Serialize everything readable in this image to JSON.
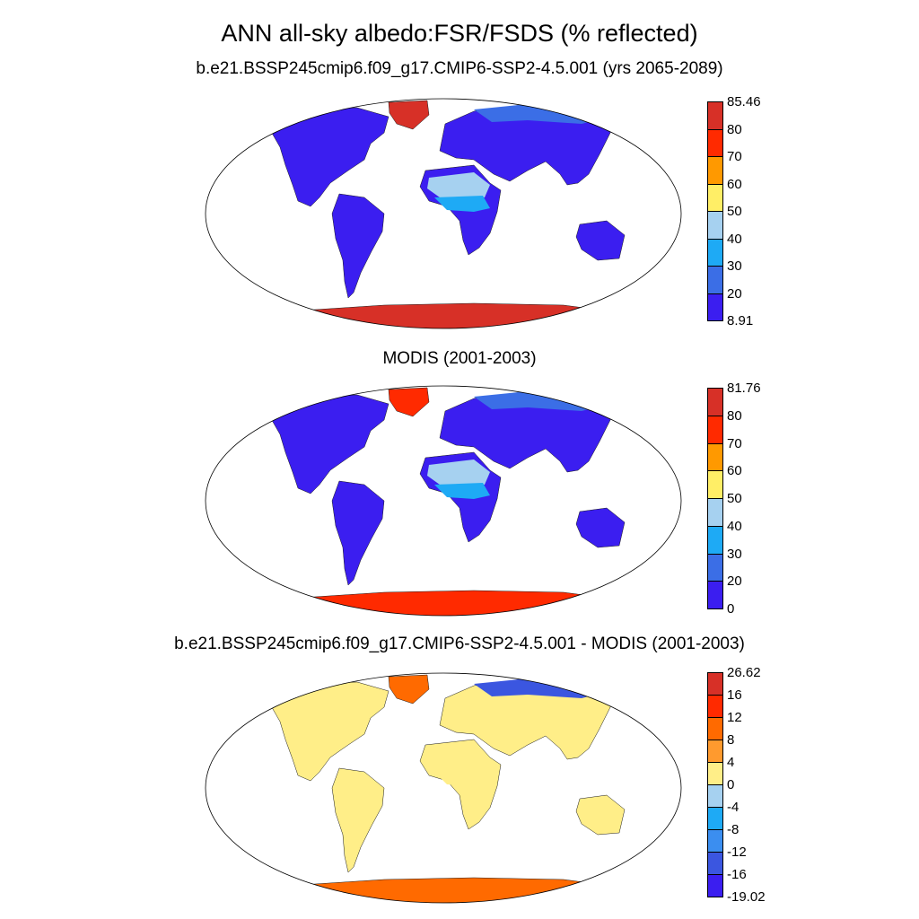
{
  "header": {
    "title": "ANN all-sky albedo:FSR/FSDS (% reflected)"
  },
  "panels": [
    {
      "subtitle": "b.e21.BSSP245cmip6.f09_g17.CMIP6-SSP2-4.5.001 (yrs 2065-2089)",
      "colorbar": {
        "labels": [
          "85.46",
          "80",
          "70",
          "60",
          "50",
          "40",
          "30",
          "20",
          "8.91"
        ],
        "colors": [
          "#d73027",
          "#ff2a00",
          "#ff9900",
          "#ffee66",
          "#a6d1f0",
          "#1eaaf5",
          "#3b6ee6",
          "#3b1ef0"
        ]
      },
      "region_fill": {
        "antarctica": "#d73027",
        "greenland": "#d73027",
        "land": "#3b1ef0",
        "desert": "#a6d1f0",
        "sahel": "#1eaaf5",
        "arctic": "#3b6ee6"
      }
    },
    {
      "subtitle": "MODIS (2001-2003)",
      "colorbar": {
        "labels": [
          "81.76",
          "80",
          "70",
          "60",
          "50",
          "40",
          "30",
          "20",
          "0"
        ],
        "colors": [
          "#d73027",
          "#ff2a00",
          "#ff9900",
          "#ffee66",
          "#a6d1f0",
          "#1eaaf5",
          "#3b6ee6",
          "#3b1ef0"
        ]
      },
      "region_fill": {
        "antarctica": "#ff2a00",
        "greenland": "#ff2a00",
        "land": "#3b1ef0",
        "desert": "#a6d1f0",
        "sahel": "#1eaaf5",
        "arctic": "#3b6ee6"
      }
    },
    {
      "subtitle": "b.e21.BSSP245cmip6.f09_g17.CMIP6-SSP2-4.5.001 - MODIS (2001-2003)",
      "colorbar": {
        "labels": [
          "26.62",
          "16",
          "12",
          "8",
          "4",
          "0",
          "-4",
          "-8",
          "-12",
          "-16",
          "-19.02"
        ],
        "colors": [
          "#d73027",
          "#ff2a00",
          "#ff6a00",
          "#ff9a2e",
          "#ffee88",
          "#a6d1f0",
          "#1eaaf5",
          "#3b8ef0",
          "#3b56e0",
          "#3b1ef0"
        ]
      },
      "region_fill": {
        "antarctica": "#ff6a00",
        "greenland": "#ff6a00",
        "land": "#ffee88",
        "desert": "#ffee88",
        "sahel": "#ffee88",
        "arctic": "#3b56e0"
      }
    }
  ]
}
